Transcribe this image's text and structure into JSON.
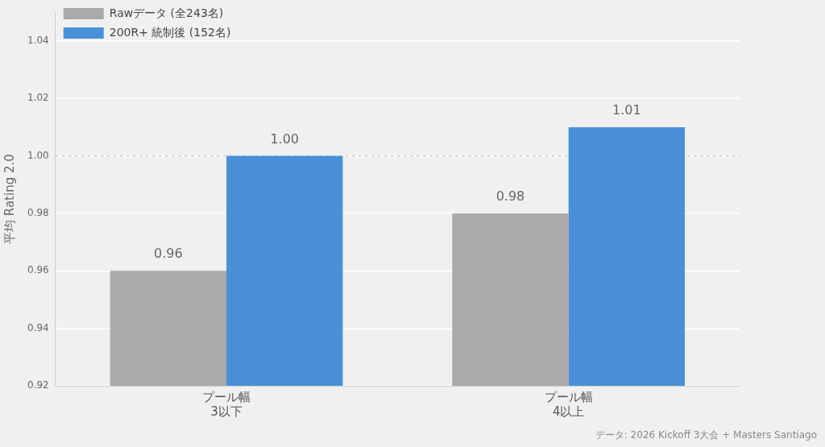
{
  "chart_data": {
    "type": "bar",
    "ylabel": "平均 Rating 2.0",
    "categories": [
      "プール幅\n3以下",
      "プール幅\n4以上"
    ],
    "series": [
      {
        "name": "Rawデータ (全243名)",
        "color": "#aaaaaa",
        "values": [
          0.96,
          0.98
        ],
        "value_labels": [
          "0.96",
          "0.98"
        ]
      },
      {
        "name": "200R+ 統制後 (152名)",
        "color": "#4a90d9",
        "values": [
          1.0,
          1.01
        ],
        "value_labels": [
          "1.00",
          "1.01"
        ]
      }
    ],
    "ylim": [
      0.92,
      1.05
    ],
    "yticks": [
      {
        "value": 0.92,
        "label": "0.92"
      },
      {
        "value": 0.94,
        "label": "0.94"
      },
      {
        "value": 0.96,
        "label": "0.96"
      },
      {
        "value": 0.98,
        "label": "0.98"
      },
      {
        "value": 1.0,
        "label": "1.00"
      },
      {
        "value": 1.02,
        "label": "1.02"
      },
      {
        "value": 1.04,
        "label": "1.04"
      }
    ],
    "ref_lines": [
      {
        "axis": "y",
        "value": 1.0,
        "line_style": "dashed",
        "color": "#bbbbbb"
      }
    ],
    "grid": "y",
    "legend": "top left",
    "annotations": [
      "データ: 2026 Kickoff 3大会 + Masters Santiago"
    ]
  }
}
